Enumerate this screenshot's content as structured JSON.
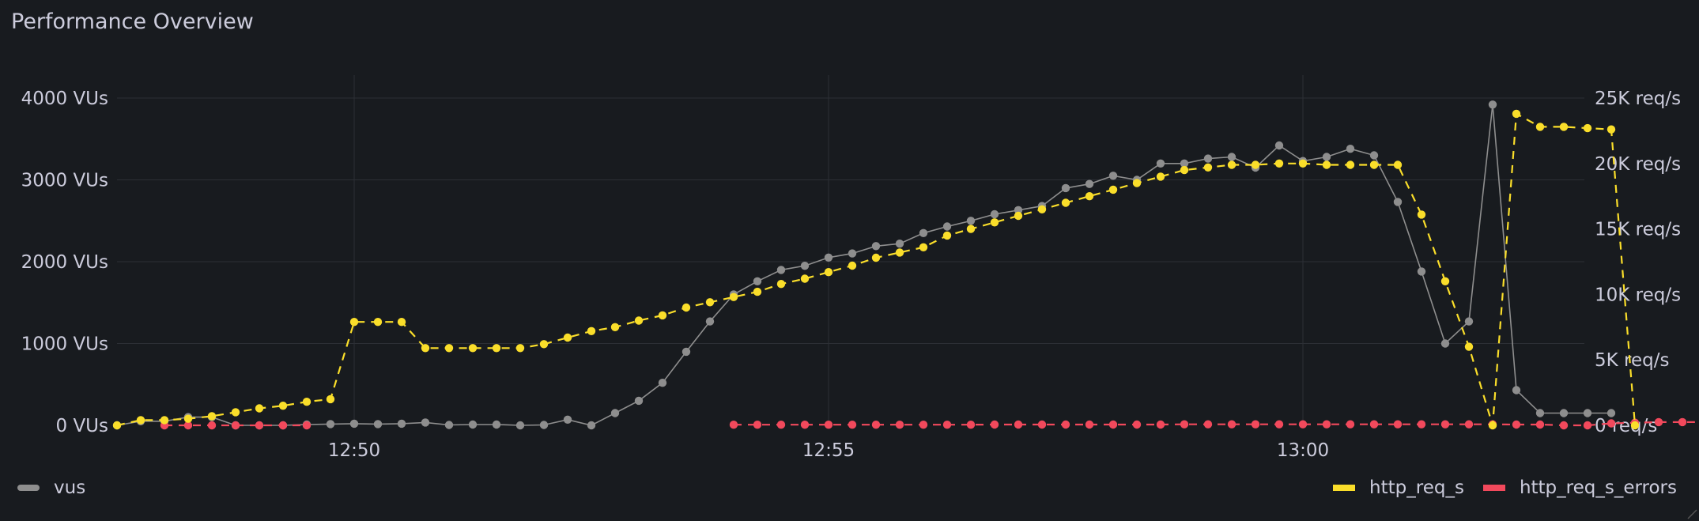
{
  "panel": {
    "title": "Performance Overview"
  },
  "colors": {
    "background": "#181b1f",
    "grid": "#2c2f35",
    "vus": "#8e8e8e",
    "http_req_s": "#fade2a",
    "http_req_s_errors": "#f2495c",
    "text": "#ccccdc"
  },
  "legend": {
    "vus": "vus",
    "http_req_s": "http_req_s",
    "http_req_s_errors": "http_req_s_errors"
  },
  "chart_data": {
    "type": "line",
    "title": "Performance Overview",
    "x_start": "12:47:30",
    "x_step_seconds": 15,
    "x_ticks": [
      "12:50",
      "12:55",
      "13:00"
    ],
    "y_left": {
      "unit": "VUs",
      "lim": [
        0,
        4000
      ],
      "ticks": [
        "0 VUs",
        "1000 VUs",
        "2000 VUs",
        "3000 VUs",
        "4000 VUs"
      ]
    },
    "y_right": {
      "unit": "req/s",
      "lim": [
        0,
        25000
      ],
      "ticks": [
        "0 req/s",
        "5K req/s",
        "10K req/s",
        "15K req/s",
        "20K req/s",
        "25K req/s"
      ]
    },
    "grid": true,
    "legend_position": "bottom",
    "series": [
      {
        "name": "vus",
        "axis": "left",
        "style": "solid",
        "values": [
          0,
          50,
          50,
          100,
          100,
          0,
          0,
          0,
          10,
          15,
          20,
          15,
          20,
          35,
          5,
          10,
          10,
          0,
          5,
          70,
          0,
          150,
          300,
          520,
          900,
          1270,
          1600,
          1760,
          1900,
          1950,
          2050,
          2100,
          2190,
          2220,
          2350,
          2430,
          2500,
          2580,
          2630,
          2680,
          2900,
          2950,
          3050,
          3000,
          3200,
          3200,
          3260,
          3280,
          3150,
          3420,
          3230,
          3280,
          3380,
          3300,
          2730,
          1880,
          1000,
          1270,
          3920,
          430,
          150,
          150,
          150,
          150
        ]
      },
      {
        "name": "http_req_s",
        "axis": "right",
        "style": "dashed",
        "values": [
          0,
          400,
          400,
          500,
          700,
          1000,
          1300,
          1500,
          1800,
          2000,
          7900,
          7900,
          7900,
          5900,
          5900,
          5900,
          5900,
          5900,
          6200,
          6700,
          7200,
          7500,
          8000,
          8400,
          9000,
          9400,
          9800,
          10200,
          10800,
          11200,
          11700,
          12200,
          12800,
          13200,
          13600,
          14500,
          15000,
          15500,
          16000,
          16500,
          17000,
          17500,
          18000,
          18500,
          19000,
          19500,
          19700,
          19900,
          19900,
          20000,
          20000,
          19900,
          19900,
          19900,
          19900,
          16100,
          11000,
          6000,
          0,
          23800,
          22800,
          22800,
          22700,
          22600,
          0
        ]
      },
      {
        "name": "http_req_s_errors",
        "axis": "right",
        "style": "dashed",
        "segments": [
          {
            "start_index": 2,
            "values": [
              0,
              0,
              0,
              0,
              0,
              0,
              0
            ]
          },
          {
            "start_index": 26,
            "values": [
              50,
              50,
              50,
              50,
              50,
              50,
              50,
              50,
              50,
              50,
              50,
              60,
              60,
              60,
              60,
              60,
              60,
              60,
              60,
              80,
              80,
              80,
              80,
              80,
              80,
              80,
              80,
              80,
              80,
              80,
              80,
              80,
              80,
              60,
              60,
              0,
              0,
              150,
              200,
              250,
              250,
              250
            ]
          }
        ]
      }
    ]
  }
}
